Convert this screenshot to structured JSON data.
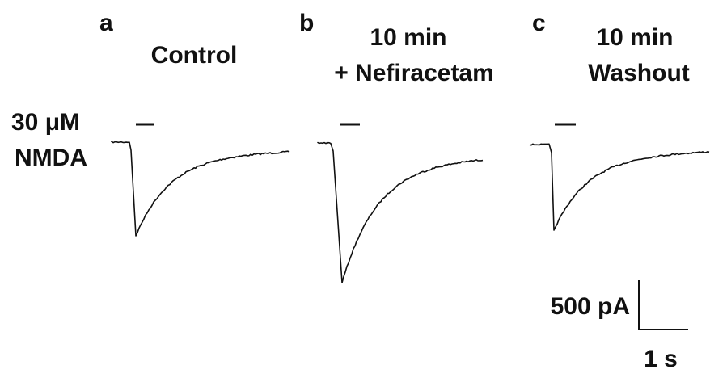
{
  "panels": [
    {
      "letter": "a",
      "title": [
        "Control"
      ]
    },
    {
      "letter": "b",
      "title": [
        "10 min",
        "+ Nefiracetam"
      ]
    },
    {
      "letter": "c",
      "title": [
        "10 min",
        "Washout"
      ]
    }
  ],
  "stimulus": [
    "30 μM",
    "NMDA"
  ],
  "scale_bar": {
    "current": "500 pA",
    "time": "1 s"
  }
}
